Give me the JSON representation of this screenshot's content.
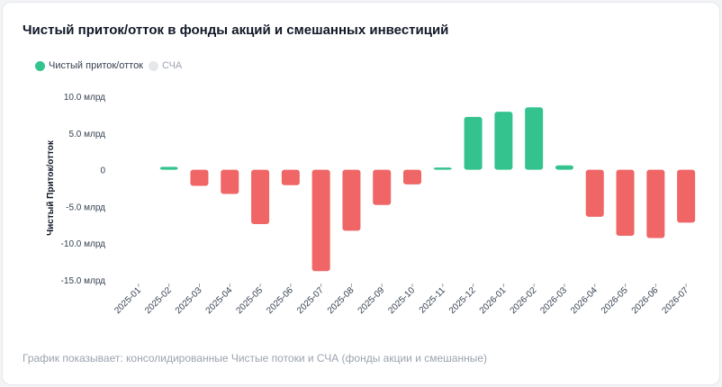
{
  "title": "Чистый приток/отток в фонды акций и смешанных инвестиций",
  "legend": [
    {
      "label": "Чистый приток/отток",
      "color": "#34c38f",
      "active": true
    },
    {
      "label": "СЧА",
      "color": "#e5e7eb",
      "active": false
    }
  ],
  "footer": "График показывает: консолидированные Чистые потоки и СЧА (фонды акции и смешанные)",
  "colors": {
    "positive": "#34c38f",
    "negative": "#f06566"
  },
  "chart_data": {
    "type": "bar",
    "ylabel": "Чистый Приток/отток",
    "ylim": [
      -15,
      10
    ],
    "yticks": [
      10,
      5,
      0,
      -5,
      -10,
      -15
    ],
    "ytick_labels": [
      "10.0 млрд",
      "5.0 млрд",
      "0",
      "-5.0 млрд",
      "-10.0 млрд",
      "-15.0 млрд"
    ],
    "categories": [
      "2025-01",
      "2025-02",
      "2025-03",
      "2025-04",
      "2025-05",
      "2025-06",
      "2025-07",
      "2025-08",
      "2025-09",
      "2025-10",
      "2025-11",
      "2025-12",
      "2026-01",
      "2026-02",
      "2026-03",
      "2026-04",
      "2026-05",
      "2026-06",
      "2026-07"
    ],
    "series": [
      {
        "name": "Чистый приток/отток",
        "values": [
          0,
          0.4,
          -2.2,
          -3.3,
          -7.4,
          -2.1,
          -13.8,
          -8.3,
          -4.8,
          -2.0,
          0.3,
          7.2,
          7.9,
          8.5,
          0.6,
          -6.4,
          -9.0,
          -9.3,
          -7.2
        ]
      }
    ],
    "grid": false,
    "legend_position": "top-left"
  }
}
